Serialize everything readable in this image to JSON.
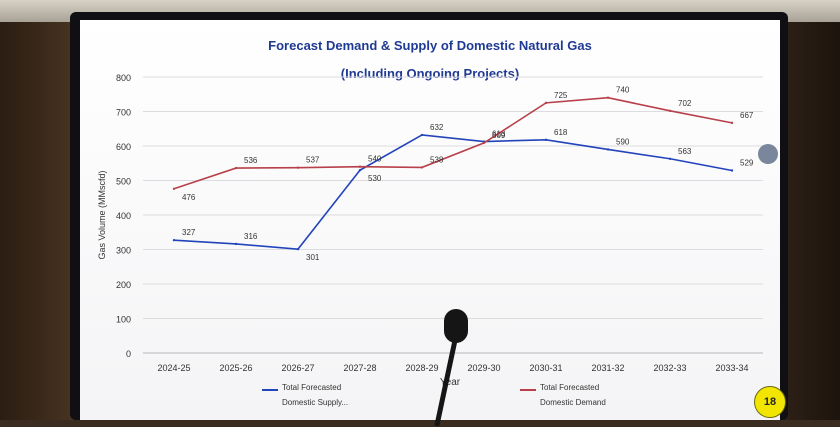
{
  "page_number": "18",
  "chart_data": {
    "type": "line",
    "title": "Forecast Demand & Supply of Domestic Natural Gas",
    "subtitle": "(Including Ongoing Projects)",
    "xlabel": "Year",
    "ylabel": "Gas Volume (MMscfd)",
    "categories": [
      "2024-25",
      "2025-26",
      "2026-27",
      "2027-28",
      "2028-29",
      "2029-30",
      "2030-31",
      "2031-32",
      "2032-33",
      "2033-34"
    ],
    "ylim": [
      0,
      800
    ],
    "yticks": [
      0,
      100,
      200,
      300,
      400,
      500,
      600,
      700,
      800
    ],
    "grid": true,
    "legend_position": "bottom",
    "series": [
      {
        "name": "Total Forecasted Domestic Supply...",
        "legend_lines": [
          "Total Forecasted",
          "Domestic Supply..."
        ],
        "color": "#2244bb",
        "values": [
          327,
          316,
          301,
          530,
          632,
          613,
          618,
          590,
          563,
          529
        ]
      },
      {
        "name": "Total Forecasted Domestic Demand",
        "legend_lines": [
          "Total Forecasted",
          "Domestic Demand"
        ],
        "color": "#b8404a",
        "values": [
          476,
          536,
          537,
          540,
          538,
          609,
          725,
          740,
          702,
          667
        ]
      }
    ]
  }
}
